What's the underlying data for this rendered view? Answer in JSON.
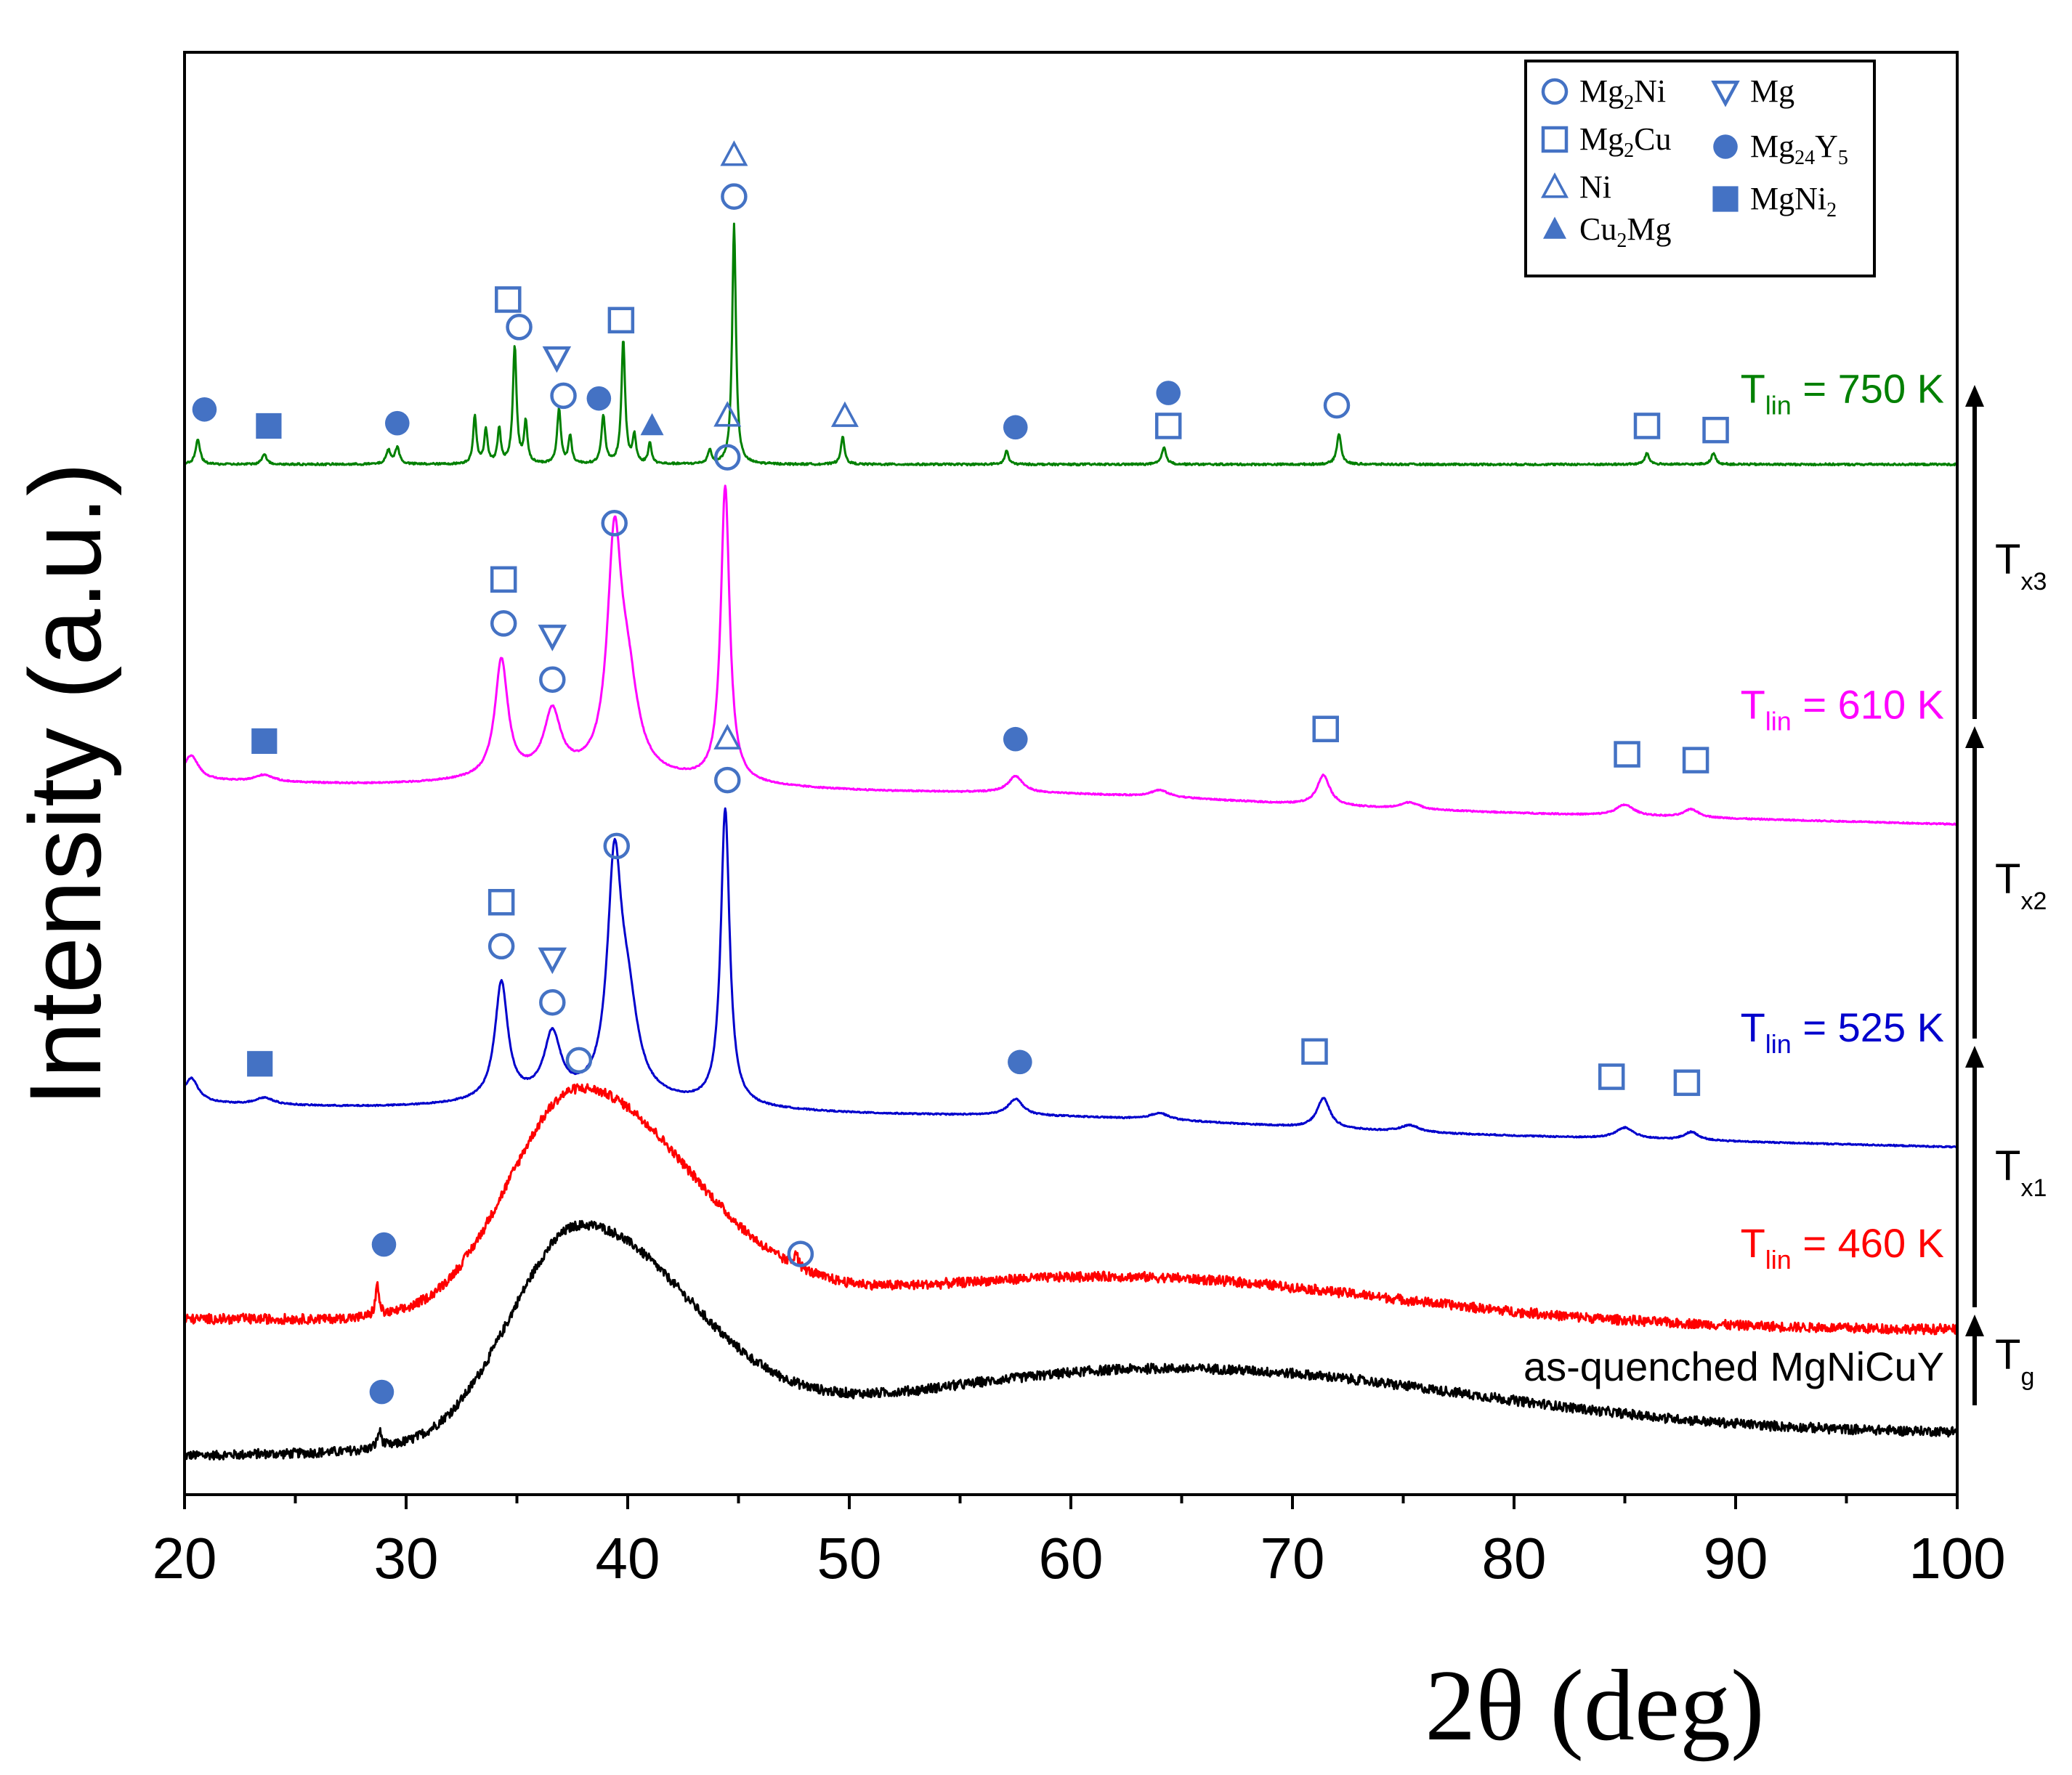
{
  "chart_data": {
    "type": "line",
    "title": "",
    "xlabel": "2θ (deg)",
    "ylabel": "Intensity (a.u.)",
    "xlim": [
      20,
      100
    ],
    "xticks": [
      "20",
      "30",
      "40",
      "50",
      "60",
      "70",
      "80",
      "90",
      "100"
    ],
    "yticks": [],
    "grid": false,
    "legend_position": "top-right",
    "legend": [
      {
        "key": "Mg2Ni",
        "symbol": "circle-open",
        "base": "Mg",
        "sub1": "2",
        "mid": "Ni",
        "sub2": "",
        "tail": ""
      },
      {
        "key": "Mg2Cu",
        "symbol": "square-open",
        "base": "Mg",
        "sub1": "2",
        "mid": "Cu",
        "sub2": "",
        "tail": ""
      },
      {
        "key": "Ni",
        "symbol": "triangle-up-open",
        "base": "Ni",
        "sub1": "",
        "mid": "",
        "sub2": "",
        "tail": ""
      },
      {
        "key": "Cu2Mg",
        "symbol": "triangle-up-filled",
        "base": "Cu",
        "sub1": "2",
        "mid": "Mg",
        "sub2": "",
        "tail": ""
      },
      {
        "key": "Mg",
        "symbol": "triangle-down-open",
        "base": "Mg",
        "sub1": "",
        "mid": "",
        "sub2": "",
        "tail": ""
      },
      {
        "key": "Mg24Y5",
        "symbol": "circle-filled",
        "base": "Mg",
        "sub1": "24",
        "mid": "Y",
        "sub2": "5",
        "tail": ""
      },
      {
        "key": "MgNi2",
        "symbol": "square-filled",
        "base": "MgNi",
        "sub1": "2",
        "mid": "",
        "sub2": "",
        "tail": ""
      }
    ],
    "series": [
      {
        "name": "as-quenched MgNiCuY",
        "label_main": "as-quenched MgNiCuY",
        "label_sub": "",
        "label_rest": "",
        "color": "#000000",
        "baseline": 0.28,
        "slope": 0.002,
        "noise": 0.06,
        "hump": {
          "center": 37.8,
          "height": 1.55,
          "width": 3.6
        },
        "hump2": {
          "center": 64,
          "height": 0.55,
          "width": 14
        },
        "peaks": [
          {
            "x": 28.8,
            "h": 0.12,
            "w": 0.12
          }
        ],
        "markers": [
          {
            "x": 28.9,
            "sym": "circle-filled",
            "h": 0.45
          }
        ]
      },
      {
        "name": "Tlin = 460 K",
        "label_main": "T",
        "label_sub": "lin",
        "label_rest": " = 460 K",
        "color": "#ff0000",
        "baseline": 1.28,
        "slope": -0.001,
        "noise": 0.06,
        "hump": {
          "center": 37.8,
          "height": 1.65,
          "width": 3.7
        },
        "hump2": {
          "center": 62,
          "height": 0.35,
          "width": 12
        },
        "peaks": [
          {
            "x": 28.7,
            "h": 0.22,
            "w": 0.1
          },
          {
            "x": 47.6,
            "h": 0.12,
            "w": 0.1
          }
        ],
        "markers": [
          {
            "x": 29.0,
            "sym": "circle-filled",
            "h": 0.55
          },
          {
            "x": 37.8,
            "sym": "circle-open",
            "h": 1.9
          },
          {
            "x": 47.8,
            "sym": "circle-open",
            "h": 0.5
          }
        ]
      },
      {
        "name": "Tlin = 525 K",
        "label_main": "T",
        "label_sub": "lin",
        "label_rest": " = 525 K",
        "color": "#0000cc",
        "baseline": 2.85,
        "slope": -0.004,
        "noise": 0.008,
        "hump": {
          "center": 38,
          "height": 0.1,
          "width": 5
        },
        "hump2": {
          "center": 60,
          "height": 0.06,
          "width": 8
        },
        "peaks": [
          {
            "x": 20.3,
            "h": 0.18,
            "w": 0.4
          },
          {
            "x": 23.6,
            "h": 0.05,
            "w": 0.5
          },
          {
            "x": 34.3,
            "h": 0.85,
            "w": 0.35
          },
          {
            "x": 36.6,
            "h": 0.45,
            "w": 0.45
          },
          {
            "x": 39.4,
            "h": 1.6,
            "w": 0.38
          },
          {
            "x": 40.0,
            "h": 0.6,
            "w": 0.55
          },
          {
            "x": 44.4,
            "h": 2.15,
            "w": 0.24
          },
          {
            "x": 57.5,
            "h": 0.12,
            "w": 0.4
          },
          {
            "x": 64.0,
            "h": 0.05,
            "w": 0.5
          },
          {
            "x": 71.4,
            "h": 0.22,
            "w": 0.35
          },
          {
            "x": 75.3,
            "h": 0.05,
            "w": 0.5
          },
          {
            "x": 85.0,
            "h": 0.08,
            "w": 0.5
          },
          {
            "x": 88.0,
            "h": 0.06,
            "w": 0.4
          }
        ],
        "markers": [
          {
            "x": 23.4,
            "sym": "square-filled",
            "h": 0.3
          },
          {
            "x": 34.3,
            "sym": "circle-open",
            "h": 1.2
          },
          {
            "x": 34.3,
            "sym": "square-open",
            "h": 1.52
          },
          {
            "x": 36.6,
            "sym": "circle-open",
            "h": 0.8
          },
          {
            "x": 36.6,
            "sym": "triangle-down-open",
            "h": 1.12
          },
          {
            "x": 39.5,
            "sym": "circle-open",
            "h": 1.95
          },
          {
            "x": 44.5,
            "sym": "circle-open",
            "h": 2.45
          },
          {
            "x": 44.5,
            "sym": "triangle-up-open",
            "h": 2.75
          },
          {
            "x": 57.7,
            "sym": "circle-filled",
            "h": 0.45
          },
          {
            "x": 71.0,
            "sym": "square-open",
            "h": 0.58
          },
          {
            "x": 84.4,
            "sym": "square-open",
            "h": 0.45
          },
          {
            "x": 87.8,
            "sym": "square-open",
            "h": 0.42
          }
        ]
      },
      {
        "name": "Tlin = 610 K",
        "label_main": "T",
        "label_sub": "lin",
        "label_rest": " = 610 K",
        "color": "#ff00ff",
        "baseline": 5.2,
        "slope": -0.004,
        "noise": 0.008,
        "hump": {
          "center": 38,
          "height": 0.1,
          "width": 5
        },
        "hump2": {
          "center": 60,
          "height": 0.06,
          "width": 8
        },
        "peaks": [
          {
            "x": 20.3,
            "h": 0.18,
            "w": 0.4
          },
          {
            "x": 23.6,
            "h": 0.05,
            "w": 0.5
          },
          {
            "x": 34.3,
            "h": 0.85,
            "w": 0.35
          },
          {
            "x": 36.6,
            "h": 0.45,
            "w": 0.45
          },
          {
            "x": 39.4,
            "h": 1.6,
            "w": 0.38
          },
          {
            "x": 40.0,
            "h": 0.6,
            "w": 0.55
          },
          {
            "x": 44.4,
            "h": 2.15,
            "w": 0.24
          },
          {
            "x": 57.5,
            "h": 0.12,
            "w": 0.4
          },
          {
            "x": 64.0,
            "h": 0.05,
            "w": 0.5
          },
          {
            "x": 71.4,
            "h": 0.22,
            "w": 0.35
          },
          {
            "x": 75.3,
            "h": 0.05,
            "w": 0.5
          },
          {
            "x": 85.0,
            "h": 0.08,
            "w": 0.5
          },
          {
            "x": 88.0,
            "h": 0.06,
            "w": 0.4
          }
        ],
        "markers": [
          {
            "x": 23.6,
            "sym": "square-filled",
            "h": 0.3
          },
          {
            "x": 34.4,
            "sym": "circle-open",
            "h": 1.2
          },
          {
            "x": 34.4,
            "sym": "square-open",
            "h": 1.52
          },
          {
            "x": 36.6,
            "sym": "circle-open",
            "h": 0.8
          },
          {
            "x": 36.6,
            "sym": "triangle-down-open",
            "h": 1.12
          },
          {
            "x": 39.4,
            "sym": "circle-open",
            "h": 1.95
          },
          {
            "x": 44.5,
            "sym": "circle-open",
            "h": 2.45
          },
          {
            "x": 44.5,
            "sym": "triangle-up-open",
            "h": 2.75
          },
          {
            "x": 57.5,
            "sym": "circle-filled",
            "h": 0.45
          },
          {
            "x": 71.5,
            "sym": "square-open",
            "h": 0.58
          },
          {
            "x": 85.1,
            "sym": "square-open",
            "h": 0.45
          },
          {
            "x": 88.2,
            "sym": "square-open",
            "h": 0.42
          }
        ]
      },
      {
        "name": "Tlin = 750 K",
        "label_main": "T",
        "label_sub": "lin",
        "label_rest": " = 750 K",
        "color": "#008000",
        "baseline": 7.5,
        "slope": 0,
        "noise": 0.012,
        "hump": {
          "center": 38,
          "height": 0,
          "width": 5
        },
        "hump2": {
          "center": 60,
          "height": 0,
          "width": 8
        },
        "peaks": [
          {
            "x": 20.6,
            "h": 0.18,
            "w": 0.12
          },
          {
            "x": 23.6,
            "h": 0.08,
            "w": 0.12
          },
          {
            "x": 29.2,
            "h": 0.1,
            "w": 0.12
          },
          {
            "x": 29.6,
            "h": 0.12,
            "w": 0.12
          },
          {
            "x": 33.1,
            "h": 0.35,
            "w": 0.09
          },
          {
            "x": 33.6,
            "h": 0.25,
            "w": 0.09
          },
          {
            "x": 34.2,
            "h": 0.25,
            "w": 0.09
          },
          {
            "x": 34.9,
            "h": 0.85,
            "w": 0.1
          },
          {
            "x": 35.4,
            "h": 0.3,
            "w": 0.09
          },
          {
            "x": 36.9,
            "h": 0.4,
            "w": 0.1
          },
          {
            "x": 37.4,
            "h": 0.2,
            "w": 0.09
          },
          {
            "x": 38.9,
            "h": 0.35,
            "w": 0.1
          },
          {
            "x": 39.8,
            "h": 0.9,
            "w": 0.1
          },
          {
            "x": 40.3,
            "h": 0.2,
            "w": 0.09
          },
          {
            "x": 41.0,
            "h": 0.15,
            "w": 0.09
          },
          {
            "x": 43.7,
            "h": 0.1,
            "w": 0.1
          },
          {
            "x": 44.8,
            "h": 1.75,
            "w": 0.1
          },
          {
            "x": 49.7,
            "h": 0.2,
            "w": 0.1
          },
          {
            "x": 57.1,
            "h": 0.1,
            "w": 0.1
          },
          {
            "x": 64.2,
            "h": 0.12,
            "w": 0.12
          },
          {
            "x": 72.1,
            "h": 0.22,
            "w": 0.12
          },
          {
            "x": 86.0,
            "h": 0.08,
            "w": 0.12
          },
          {
            "x": 89.0,
            "h": 0.08,
            "w": 0.12
          }
        ],
        "markers": [
          {
            "x": 20.9,
            "sym": "circle-filled",
            "h": 0.4
          },
          {
            "x": 23.8,
            "sym": "square-filled",
            "h": 0.28
          },
          {
            "x": 29.6,
            "sym": "circle-filled",
            "h": 0.3
          },
          {
            "x": 34.6,
            "sym": "square-open",
            "h": 1.2
          },
          {
            "x": 35.1,
            "sym": "circle-open",
            "h": 1.0
          },
          {
            "x": 36.8,
            "sym": "triangle-down-open",
            "h": 0.78
          },
          {
            "x": 37.1,
            "sym": "circle-open",
            "h": 0.5
          },
          {
            "x": 38.7,
            "sym": "circle-filled",
            "h": 0.48
          },
          {
            "x": 39.7,
            "sym": "square-open",
            "h": 1.05
          },
          {
            "x": 41.1,
            "sym": "triangle-up-filled",
            "h": 0.28
          },
          {
            "x": 44.8,
            "sym": "circle-open",
            "h": 1.95
          },
          {
            "x": 44.8,
            "sym": "triangle-up-open",
            "h": 2.25
          },
          {
            "x": 49.8,
            "sym": "triangle-up-open",
            "h": 0.35
          },
          {
            "x": 57.5,
            "sym": "circle-filled",
            "h": 0.27
          },
          {
            "x": 64.4,
            "sym": "circle-filled",
            "h": 0.52
          },
          {
            "x": 64.4,
            "sym": "square-open",
            "h": 0.28
          },
          {
            "x": 72.0,
            "sym": "circle-open",
            "h": 0.43
          },
          {
            "x": 86.0,
            "sym": "square-open",
            "h": 0.28
          },
          {
            "x": 89.1,
            "sym": "square-open",
            "h": 0.25
          }
        ]
      }
    ],
    "temperature_steps": [
      {
        "main": "T",
        "sub": "g"
      },
      {
        "main": "T",
        "sub": "x1"
      },
      {
        "main": "T",
        "sub": "x2"
      },
      {
        "main": "T",
        "sub": "x3"
      }
    ]
  }
}
